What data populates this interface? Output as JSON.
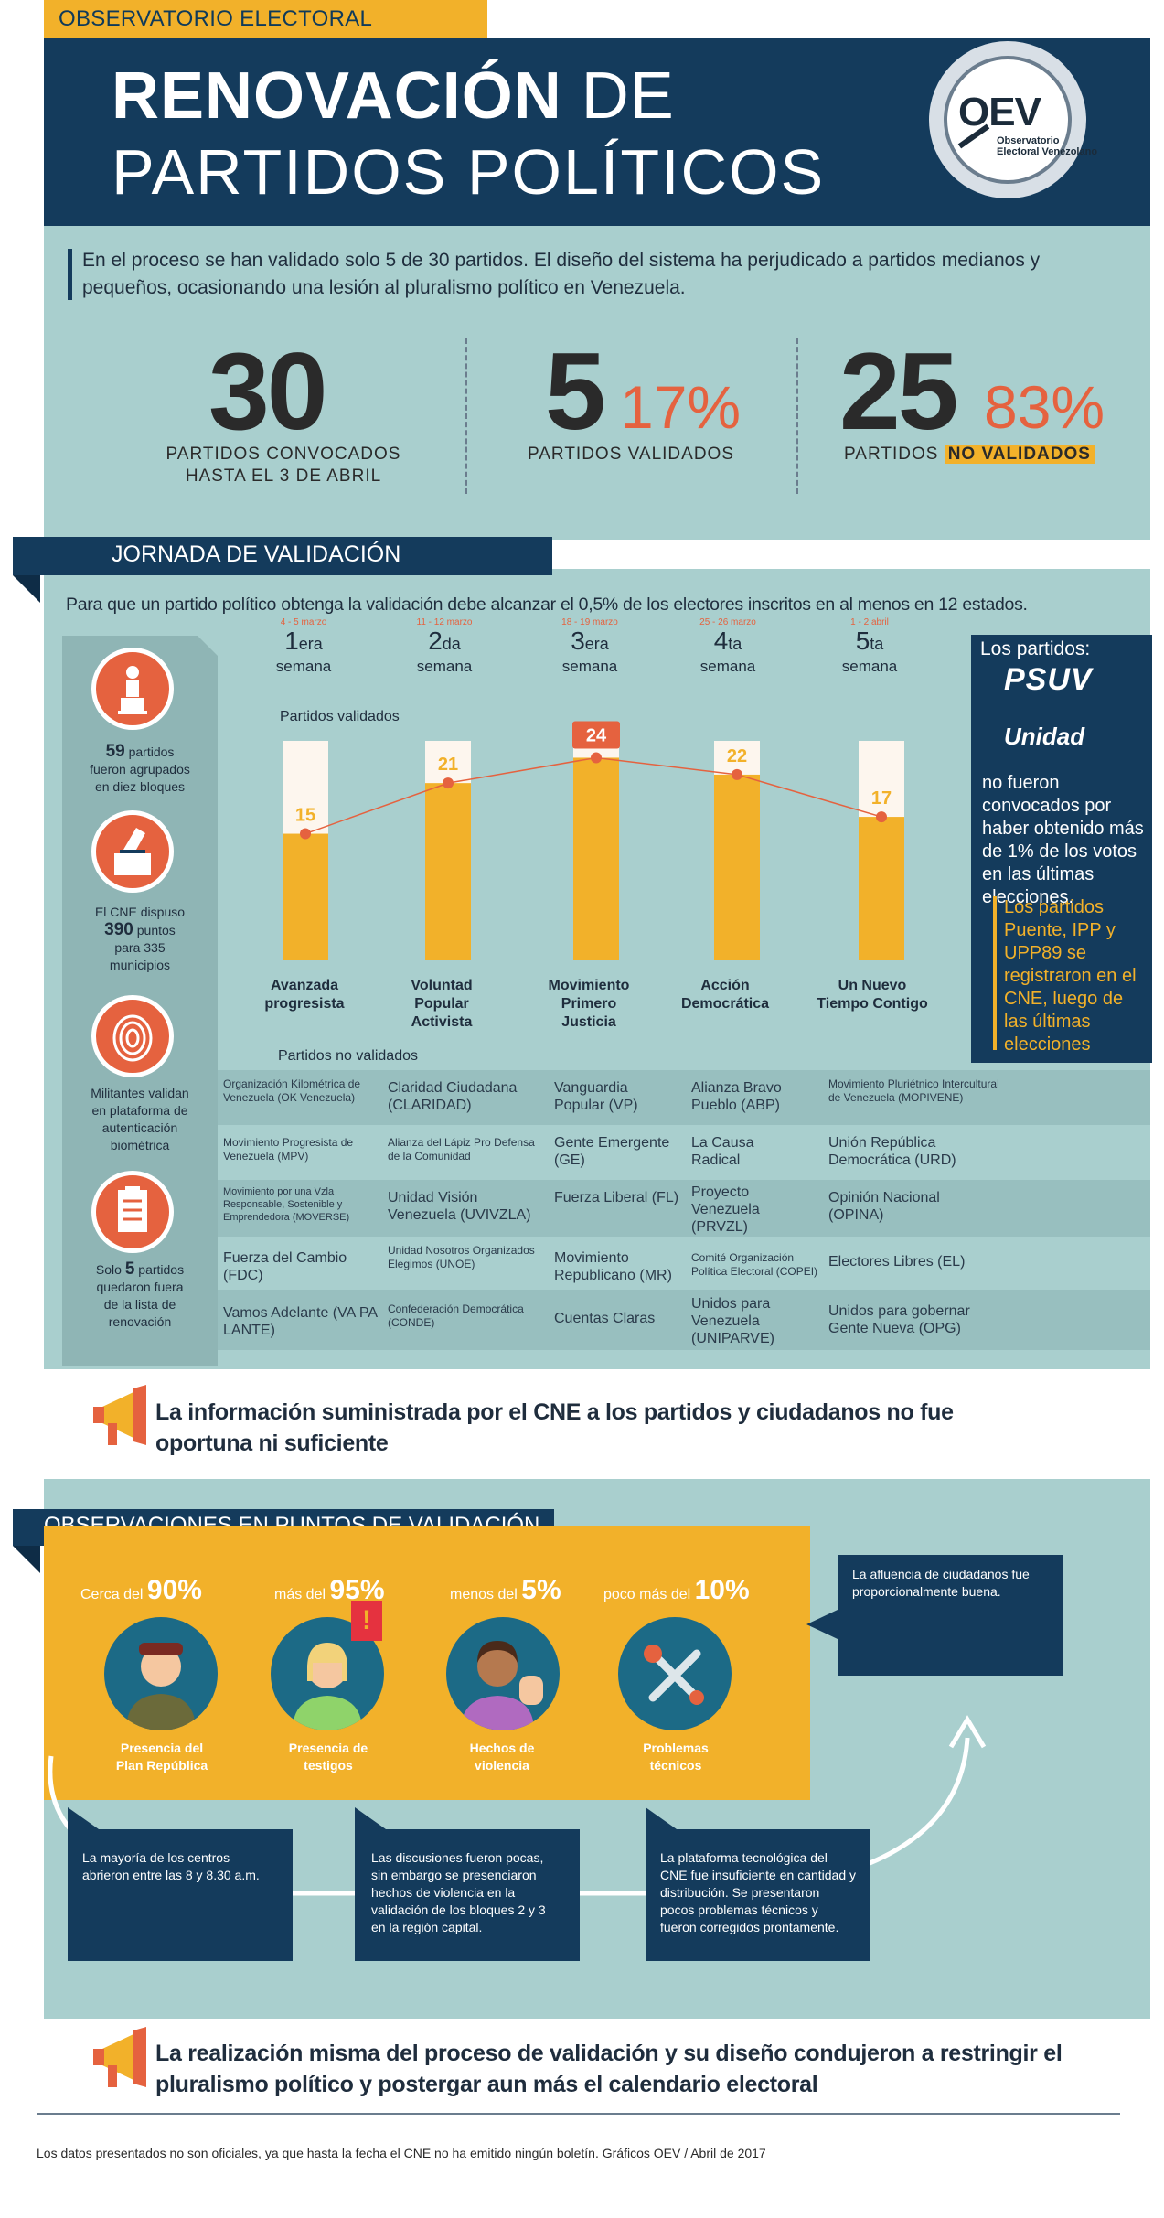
{
  "header": {
    "tag": "OBSERVATORIO ELECTORAL VENEZOLANO:",
    "title_bold": "RENOVACIÓN",
    "title_rest": " DE",
    "title_line2": "PARTIDOS POLÍTICOS",
    "logo_text": "OEV",
    "logo_sub1": "Observatorio",
    "logo_sub2": "Electoral Venezolano"
  },
  "intro": "En el proceso se han validado solo 5 de 30 partidos. El diseño del sistema ha perjudicado a partidos medianos y pequeños, ocasionando una lesión al pluralismo político en Venezuela.",
  "stats": {
    "s1_num": "30",
    "s1_label1": "PARTIDOS CONVOCADOS",
    "s1_label2": "HASTA EL 3 DE ABRIL",
    "s2_num": "5",
    "s2_pct": "17%",
    "s2_label": "PARTIDOS VALIDADOS",
    "s3_num": "25",
    "s3_pct": "83%",
    "s3_label": "PARTIDOS ",
    "s3_hl": "NO VALIDADOS"
  },
  "jornada": {
    "title": "JORNADA DE VALIDACIÓN",
    "subtitle": "Para que un partido político obtenga la validación debe alcanzar el 0,5% de los electores inscritos en al menos en 12 estados.",
    "weeks": [
      {
        "date": "4 - 5 marzo",
        "num": "1",
        "suf": "era",
        "name": "semana"
      },
      {
        "date": "11 - 12 marzo",
        "num": "2",
        "suf": "da",
        "name": "semana"
      },
      {
        "date": "18 - 19 marzo",
        "num": "3",
        "suf": "era",
        "name": "semana"
      },
      {
        "date": "25 - 26 marzo",
        "num": "4",
        "suf": "ta",
        "name": "semana"
      },
      {
        "date": "1 - 2 abril",
        "num": "5",
        "suf": "ta",
        "name": "semana"
      }
    ],
    "validated_label": "Partidos validados",
    "not_validated_label": "Partidos no validados"
  },
  "sidebar": [
    {
      "bold": "59",
      "text1": " partidos",
      "text2": "fueron agrupados",
      "text3": "en diez bloques"
    },
    {
      "bold": "390",
      "pre": "El CNE dispuso",
      "text1": " puntos",
      "text2": "para 335",
      "text3": "municipios"
    },
    {
      "text1": "Militantes validan",
      "text2": "en plataforma de",
      "text3": "autenticación",
      "text4": "biométrica"
    },
    {
      "bold": "5",
      "pre": "Solo ",
      "text1": " partidos",
      "text2": "quedaron fuera",
      "text3": "de la lista de",
      "text4": "renovación"
    }
  ],
  "chart_data": {
    "type": "bar",
    "title": "Partidos validados",
    "categories": [
      "Avanzada progresista",
      "Voluntad Popular Activista",
      "Movimiento Primero Justicia",
      "Acción Democrática",
      "Un Nuevo Tiempo Contigo"
    ],
    "values": [
      15,
      21,
      24,
      22,
      17
    ],
    "ylim": [
      0,
      26
    ]
  },
  "party_labels": [
    [
      "Avanzada",
      "progresista",
      ""
    ],
    [
      "Voluntad",
      "Popular",
      "Activista"
    ],
    [
      "Movimiento",
      "Primero",
      "Justicia"
    ],
    [
      "Acción",
      "Democrática",
      ""
    ],
    [
      "Un Nuevo",
      "Tiempo Contigo",
      ""
    ]
  ],
  "not_validated": [
    [
      "Organización Kilométrica de Venezuela (OK Venezuela)",
      "Claridad Ciudadana (CLARIDAD)",
      "Vanguardia Popular (VP)",
      "Alianza Bravo Pueblo (ABP)",
      "Movimiento Pluriétnico Intercultural de Venezuela (MOPIVENE)"
    ],
    [
      "Movimiento Progresista de Venezuela (MPV)",
      "Alianza del Lápiz Pro Defensa de la Comunidad",
      "Gente Emergente (GE)",
      "La Causa Radical",
      "Unión República Democrática (URD)"
    ],
    [
      "Movimiento por una Vzla Responsable, Sostenible y Emprendedora (MOVERSE)",
      "Unidad Visión Venezuela (UVIVZLA)",
      "Fuerza Liberal (FL)",
      "Proyecto Venezuela (PRVZL)",
      "Opinión Nacional (OPINA)"
    ],
    [
      "Fuerza del Cambio (FDC)",
      "Unidad Nosotros Organizados Elegimos (UNOE)",
      "Movimiento Republicano (MR)",
      "Comité Organización Política Electoral (COPEI)",
      "Electores Libres (EL)"
    ],
    [
      "Vamos Adelante (VA PA LANTE)",
      "Confederación Democrática (CONDE)",
      "Cuentas Claras",
      "Unidos para Venezuela (UNIPARVE)",
      "Unidos para gobernar Gente Nueva (OPG)"
    ]
  ],
  "right_box": {
    "title": "Los partidos:",
    "logo1": "PSUV",
    "logo2": "Unidad",
    "text": "no fueron convocados por haber obtenido más de 1% de los votos en las últimas elecciones.",
    "highlight": "Los partidos Puente, IPP y UPP89 se registraron en el CNE, luego de las últimas elecciones"
  },
  "callout1": "La información suministrada por el CNE a los partidos y ciudadanos no fue oportuna ni suficiente",
  "observaciones": {
    "title": "OBSERVACIONES EN PUNTOS DE VALIDACIÓN",
    "items": [
      {
        "pre": "Cerca del ",
        "pct": "90%",
        "l1": "Presencia del",
        "l2": "Plan República"
      },
      {
        "pre": "más del ",
        "pct": "95%",
        "l1": "Presencia de",
        "l2": "testigos"
      },
      {
        "pre": "menos del ",
        "pct": "5%",
        "l1": "Hechos de",
        "l2": "violencia"
      },
      {
        "pre": "poco más del ",
        "pct": "10%",
        "l1": "Problemas",
        "l2": "técnicos"
      }
    ],
    "box_top_right": "La afluencia de ciudadanos fue proporcionalmente buena.",
    "box1": "La mayoría de los centros abrieron entre las 8 y 8.30 a.m.",
    "box2": "Las discusiones fueron pocas, sin embargo se presenciaron hechos de violencia en la validación de los bloques 2 y 3 en la región capital.",
    "box3": "La plataforma tecnológica del CNE fue insuficiente en cantidad y distribución. Se presentaron pocos problemas técnicos y fueron corregidos prontamente."
  },
  "callout2": "La realización misma del proceso de validación y su diseño condujeron a restringir el pluralismo político y postergar aun más el calendario electoral",
  "footnote": "Los datos presentados no son oficiales, ya que hasta la fecha el CNE no ha emitido ningún boletín. Gráficos OEV / Abril de 2017",
  "colors": {
    "navy": "#143b5c",
    "teal": "#a9cfce",
    "yellow": "#f2b12a",
    "orange": "#e5623f"
  }
}
